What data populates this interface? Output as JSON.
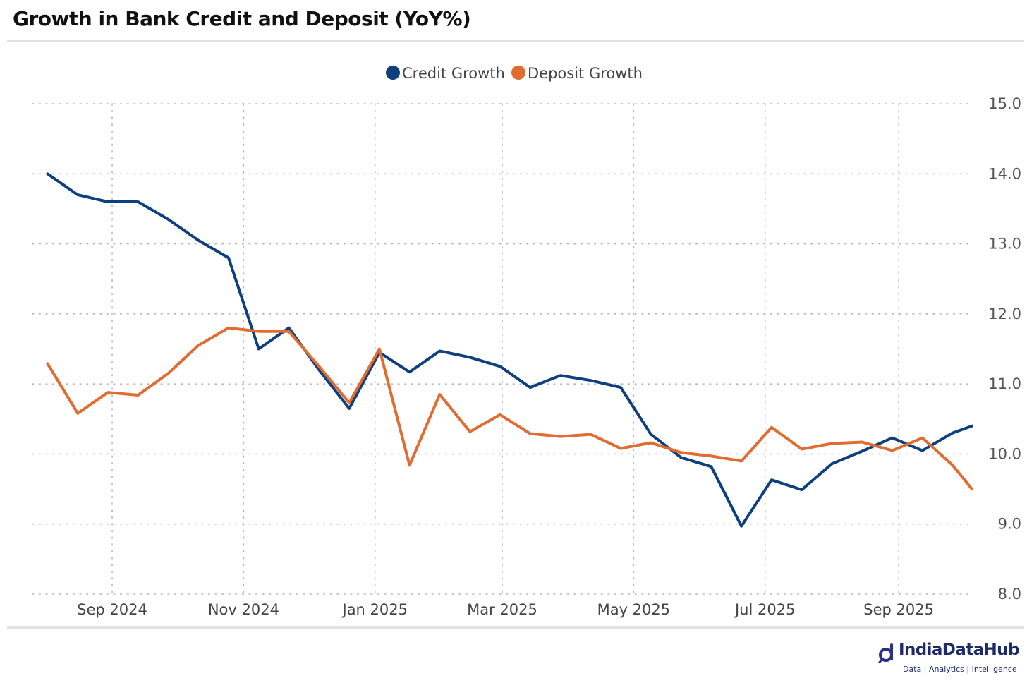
{
  "chart_data": {
    "type": "line",
    "title": "Growth in Bank Credit and Deposit (YoY%)",
    "xlabel": "",
    "ylabel": "",
    "y_axis_side": "right",
    "ylim": [
      8.0,
      15.0
    ],
    "yticks": [
      8.0,
      9.0,
      10.0,
      11.0,
      12.0,
      13.0,
      14.0,
      15.0
    ],
    "xlim": [
      "2024-07-26",
      "2025-10-05"
    ],
    "xticks": [
      {
        "label": "Sep 2024",
        "date": "2024-09-01"
      },
      {
        "label": "Nov 2024",
        "date": "2024-11-01"
      },
      {
        "label": "Jan 2025",
        "date": "2025-01-01"
      },
      {
        "label": "Mar 2025",
        "date": "2025-03-01"
      },
      {
        "label": "May 2025",
        "date": "2025-05-01"
      },
      {
        "label": "Jul 2025",
        "date": "2025-07-01"
      },
      {
        "label": "Sep 2025",
        "date": "2025-09-01"
      }
    ],
    "grid": true,
    "legend_position": "top-center",
    "x": [
      "2024-08-02",
      "2024-08-16",
      "2024-08-30",
      "2024-09-13",
      "2024-09-27",
      "2024-10-11",
      "2024-10-25",
      "2024-11-08",
      "2024-11-22",
      "2024-12-06",
      "2024-12-20",
      "2025-01-03",
      "2025-01-17",
      "2025-01-31",
      "2025-02-14",
      "2025-02-28",
      "2025-03-14",
      "2025-03-28",
      "2025-04-11",
      "2025-04-25",
      "2025-05-09",
      "2025-05-23",
      "2025-06-06",
      "2025-06-20",
      "2025-07-04",
      "2025-07-18",
      "2025-08-01",
      "2025-08-15",
      "2025-08-29",
      "2025-09-12",
      "2025-09-26"
    ],
    "series": [
      {
        "name": "Credit Growth",
        "color": "#0e3f7e",
        "values": [
          14.0,
          13.7,
          13.6,
          13.6,
          13.35,
          13.05,
          12.8,
          11.5,
          11.8,
          11.2,
          10.65,
          11.45,
          11.17,
          11.47,
          11.38,
          11.25,
          10.95,
          11.12,
          11.05,
          10.95,
          10.28,
          9.95,
          9.82,
          8.97,
          9.63,
          9.49,
          9.86,
          10.04,
          10.23,
          10.05,
          10.3
        ]
      },
      {
        "name": "Deposit Growth",
        "color": "#e06c30",
        "values": [
          11.29,
          10.58,
          10.88,
          10.84,
          11.15,
          11.55,
          11.8,
          11.75,
          11.75,
          11.25,
          10.73,
          11.5,
          9.84,
          10.85,
          10.32,
          10.56,
          10.29,
          10.25,
          10.28,
          10.08,
          10.16,
          10.02,
          9.97,
          9.9,
          10.38,
          10.07,
          10.15,
          10.17,
          10.05,
          10.23,
          9.84
        ]
      }
    ],
    "last_point": {
      "date": "2025-10-05",
      "Credit Growth": 10.4,
      "Deposit Growth": 9.5
    }
  },
  "brand": {
    "name": "IndiaDataHub",
    "tagline": "Data | Analytics | Intelligence"
  }
}
